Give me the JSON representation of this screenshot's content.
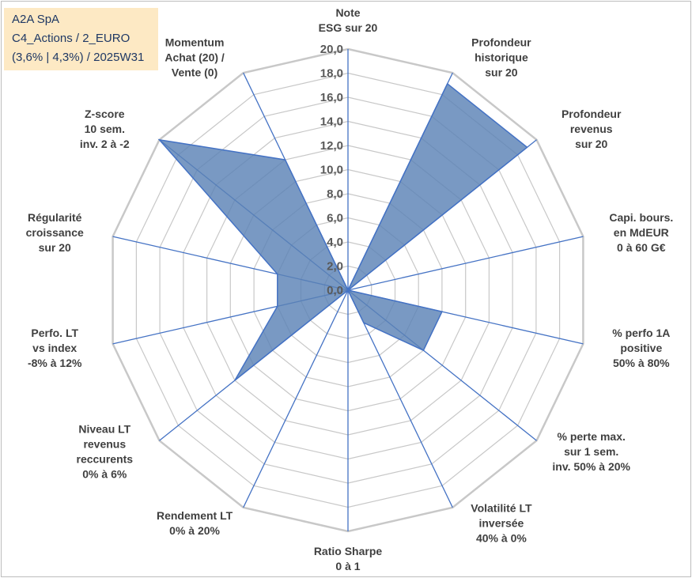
{
  "info": {
    "line1": "A2A SpA",
    "line2": "C4_Actions / 2_EURO",
    "line3": "(3,6% | 4,3%) / 2025W31"
  },
  "colors": {
    "fill": "#5b83b6",
    "stroke": "#4472c4",
    "grid": "#c8c8c8",
    "info_bg": "#fde9c4"
  },
  "chart_data": {
    "type": "radar",
    "rmin": 0,
    "rmax": 20,
    "step": 2,
    "tick_labels": [
      "0,0",
      "2,0",
      "4,0",
      "6,0",
      "8,0",
      "10,0",
      "12,0",
      "14,0",
      "16,0",
      "18,0",
      "20,0"
    ],
    "axes": [
      [
        "Note",
        "ESG sur 20"
      ],
      [
        "Profondeur",
        "historique",
        "sur 20"
      ],
      [
        "Profondeur",
        "revenus",
        "sur 20"
      ],
      [
        "Capi. bours.",
        "en MdEUR",
        "0 à 60 G€"
      ],
      [
        "% perfo 1A",
        "positive",
        "50% à 80%"
      ],
      [
        "% perte max.",
        "sur 1 sem.",
        "inv. 50% à 20%"
      ],
      [
        "Volatilité LT",
        "inversée",
        "40% à 0%"
      ],
      [
        "Ratio Sharpe",
        "0 à 1"
      ],
      [
        "Rendement LT",
        "0% à 20%"
      ],
      [
        "Niveau LT",
        "revenus",
        "reccurents",
        "0% à 6%"
      ],
      [
        "Perfo. LT",
        "vs index",
        "-8% à 12%"
      ],
      [
        "Régularité",
        "croissance",
        "sur 20"
      ],
      [
        "Z-score",
        "10 sem.",
        "inv. 2 à -2"
      ],
      [
        "Momentum",
        "Achat (20) /",
        "Vente (0)"
      ]
    ],
    "values": [
      0,
      19,
      19,
      0,
      8,
      8,
      3,
      0,
      0,
      12,
      6,
      6,
      20,
      12
    ],
    "grid": true
  }
}
